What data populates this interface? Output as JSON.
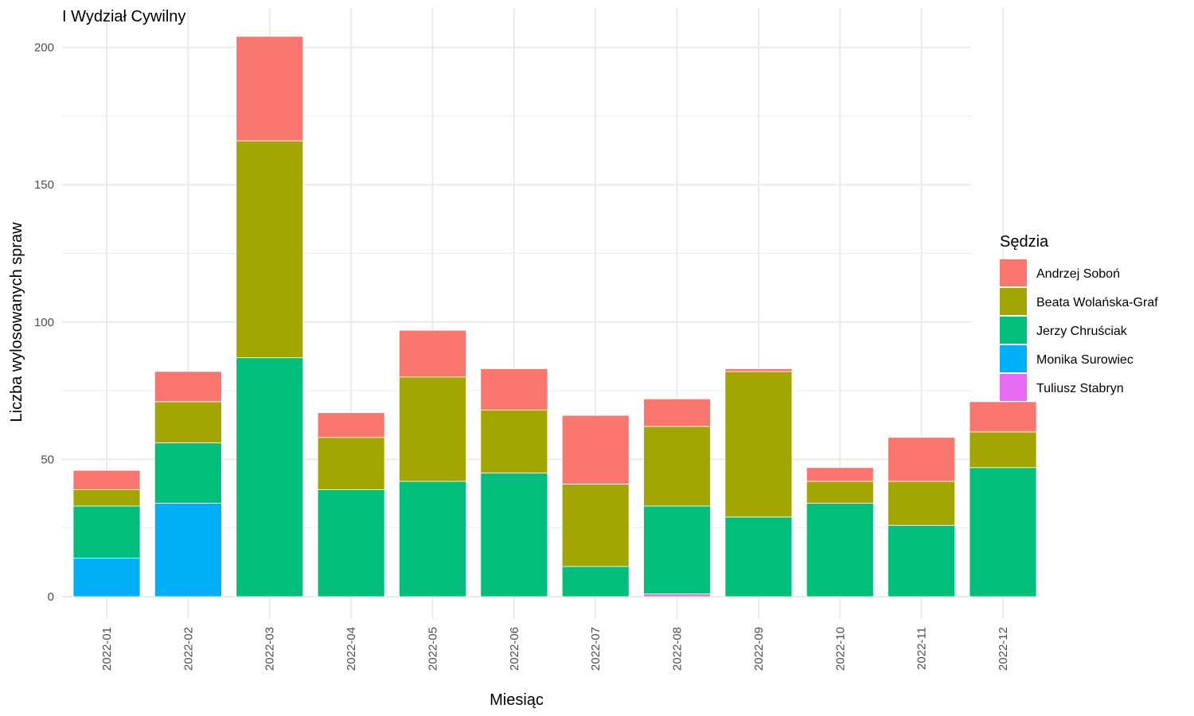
{
  "chart_data": {
    "type": "bar",
    "stacked": true,
    "title": "I Wydział Cywilny",
    "xlabel": "Miesiąc",
    "ylabel": "Liczba wylosowanych spraw",
    "ylim": [
      0,
      210
    ],
    "yticks": [
      0,
      50,
      100,
      150,
      200
    ],
    "grid": true,
    "legend_title": "Sędzia",
    "legend_position": "right",
    "categories": [
      "2022-01",
      "2022-02",
      "2022-03",
      "2022-04",
      "2022-05",
      "2022-06",
      "2022-07",
      "2022-08",
      "2022-09",
      "2022-10",
      "2022-11",
      "2022-12"
    ],
    "stack_order_bottom_to_top": [
      "Tuliusz Stabryn",
      "Monika Surowiec",
      "Jerzy Chruściak",
      "Beata Wolańska-Graf",
      "Andrzej Soboń"
    ],
    "series": [
      {
        "name": "Andrzej Soboń",
        "color": "#F8766D",
        "values": [
          7,
          11,
          38,
          9,
          17,
          15,
          25,
          10,
          1,
          5,
          16,
          11
        ]
      },
      {
        "name": "Beata Wolańska-Graf",
        "color": "#A3A500",
        "values": [
          6,
          15,
          79,
          19,
          38,
          23,
          30,
          29,
          53,
          8,
          16,
          13
        ]
      },
      {
        "name": "Jerzy Chruściak",
        "color": "#00BF7D",
        "values": [
          19,
          22,
          87,
          39,
          42,
          45,
          11,
          32,
          29,
          34,
          26,
          47
        ]
      },
      {
        "name": "Monika Surowiec",
        "color": "#00B0F6",
        "values": [
          14,
          34,
          0,
          0,
          0,
          0,
          0,
          0,
          0,
          0,
          0,
          0
        ]
      },
      {
        "name": "Tuliusz Stabryn",
        "color": "#E76BF3",
        "values": [
          0,
          0,
          0,
          0,
          0,
          0,
          0,
          1,
          0,
          0,
          0,
          0
        ]
      }
    ]
  }
}
